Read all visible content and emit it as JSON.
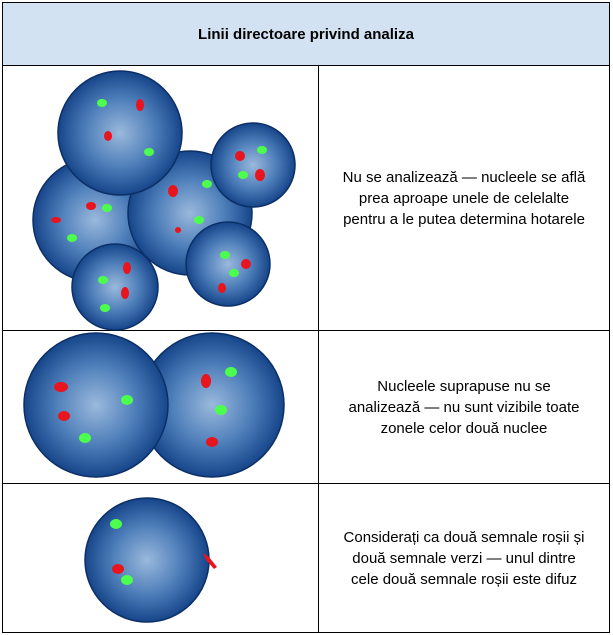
{
  "table": {
    "header": "Linii directoare privind analiza",
    "rows": [
      {
        "text": "Nu se analizează — nucleele se află prea aproape unele de celelalte pentru a le putea determina hotarele"
      },
      {
        "text": "Nucleele suprapuse nu se analizează — nu sunt vizibile toate zonele celor două nuclee"
      },
      {
        "text": "Considerați ca două semnale roșii și două semnale verzi — unul dintre cele două semnale roșii este difuz"
      }
    ]
  }
}
